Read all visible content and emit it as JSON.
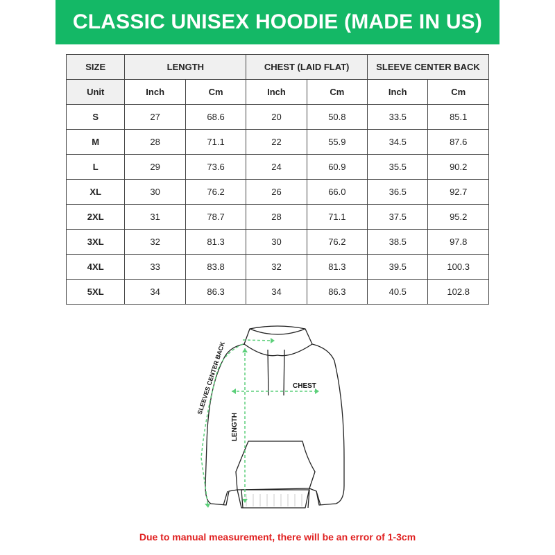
{
  "title": "CLASSIC UNISEX HOODIE (MADE IN US)",
  "colors": {
    "banner": "#14b866",
    "note": "#e02020",
    "measure_lines": "#5ccf7a"
  },
  "table": {
    "headers": [
      "SIZE",
      "LENGTH",
      "CHEST (LAID FLAT)",
      "SLEEVE CENTER BACK"
    ],
    "units": [
      "Unit",
      "Inch",
      "Cm",
      "Inch",
      "Cm",
      "Inch",
      "Cm"
    ],
    "rows": [
      [
        "S",
        "27",
        "68.6",
        "20",
        "50.8",
        "33.5",
        "85.1"
      ],
      [
        "M",
        "28",
        "71.1",
        "22",
        "55.9",
        "34.5",
        "87.6"
      ],
      [
        "L",
        "29",
        "73.6",
        "24",
        "60.9",
        "35.5",
        "90.2"
      ],
      [
        "XL",
        "30",
        "76.2",
        "26",
        "66.0",
        "36.5",
        "92.7"
      ],
      [
        "2XL",
        "31",
        "78.7",
        "28",
        "71.1",
        "37.5",
        "95.2"
      ],
      [
        "3XL",
        "32",
        "81.3",
        "30",
        "76.2",
        "38.5",
        "97.8"
      ],
      [
        "4XL",
        "33",
        "83.8",
        "32",
        "81.3",
        "39.5",
        "100.3"
      ],
      [
        "5XL",
        "34",
        "86.3",
        "34",
        "86.3",
        "40.5",
        "102.8"
      ]
    ]
  },
  "diagram": {
    "chest_label": "CHEST",
    "length_label": "LENGTH",
    "sleeve_label": "SLEEVES CENTER BACK"
  },
  "note": "Due to manual measurement, there will be an error of 1-3cm"
}
